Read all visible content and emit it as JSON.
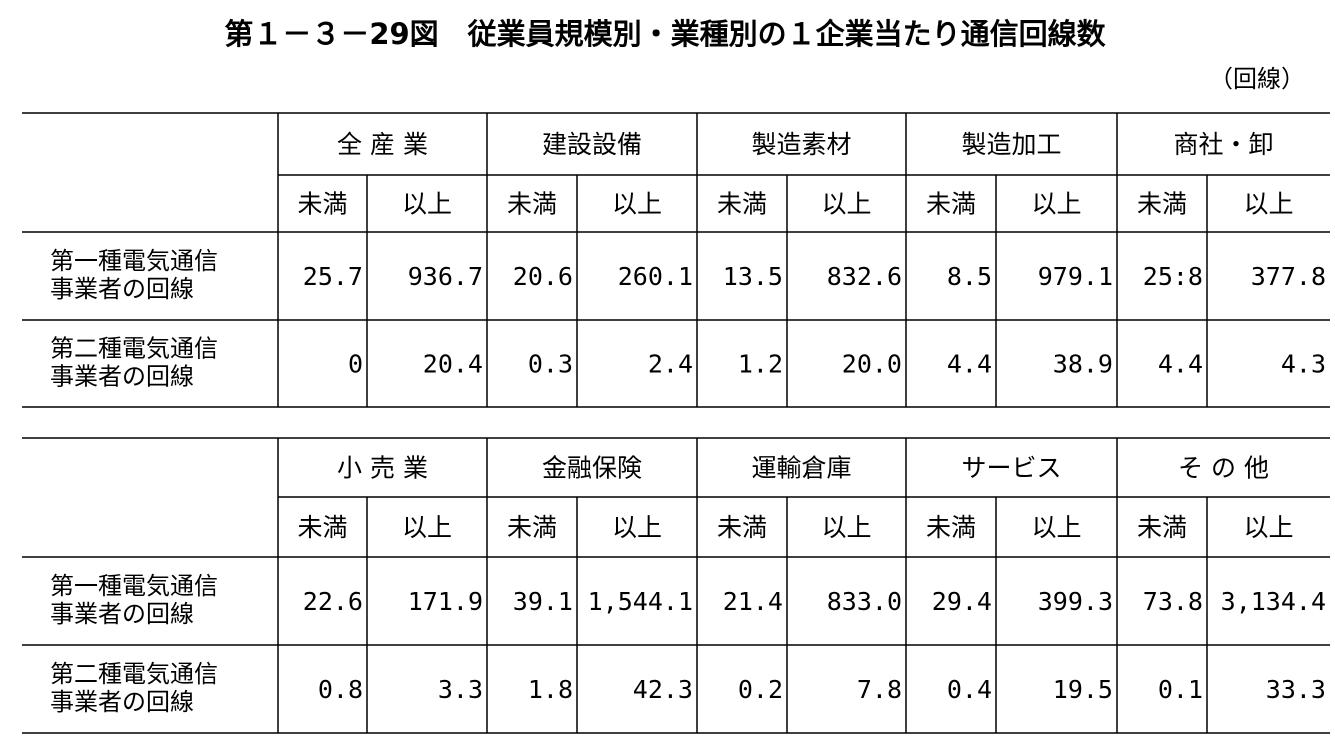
{
  "title": "第１－３－29図　従業員規模別・業種別の１企業当たり通信回線数",
  "unit": "（回線）",
  "tables": [
    {
      "groups": [
        "全 産 業",
        "建設設備",
        "製造素材",
        "製造加工",
        "商社・卸"
      ],
      "subheaders": [
        "未満",
        "以上",
        "未満",
        "以上",
        "未満",
        "以上",
        "未満",
        "以上",
        "未満",
        "以上"
      ],
      "rows": [
        {
          "label": [
            "第一種電気通信",
            "事業者の回線"
          ],
          "values": [
            "25.7",
            "936.7",
            "20.6",
            "260.1",
            "13.5",
            "832.6",
            "8.5",
            "979.1",
            "25:8",
            "377.8"
          ]
        },
        {
          "label": [
            "第二種電気通信",
            "事業者の回線"
          ],
          "values": [
            "0",
            "20.4",
            "0.3",
            "2.4",
            "1.2",
            "20.0",
            "4.4",
            "38.9",
            "4.4",
            "4.3"
          ]
        }
      ]
    },
    {
      "groups": [
        "小 売 業",
        "金融保険",
        "運輸倉庫",
        "サービス",
        "そ の 他"
      ],
      "subheaders": [
        "未満",
        "以上",
        "未満",
        "以上",
        "未満",
        "以上",
        "未満",
        "以上",
        "未満",
        "以上"
      ],
      "rows": [
        {
          "label": [
            "第一種電気通信",
            "事業者の回線"
          ],
          "values": [
            "22.6",
            "171.9",
            "39.1",
            "1,544.1",
            "21.4",
            "833.0",
            "29.4",
            "399.3",
            "73.8",
            "3,134.4"
          ]
        },
        {
          "label": [
            "第二種電気通信",
            "事業者の回線"
          ],
          "values": [
            "0.8",
            "3.3",
            "1.8",
            "42.3",
            "0.2",
            "7.8",
            "0.4",
            "19.5",
            "0.1",
            "33.3"
          ]
        }
      ]
    }
  ]
}
